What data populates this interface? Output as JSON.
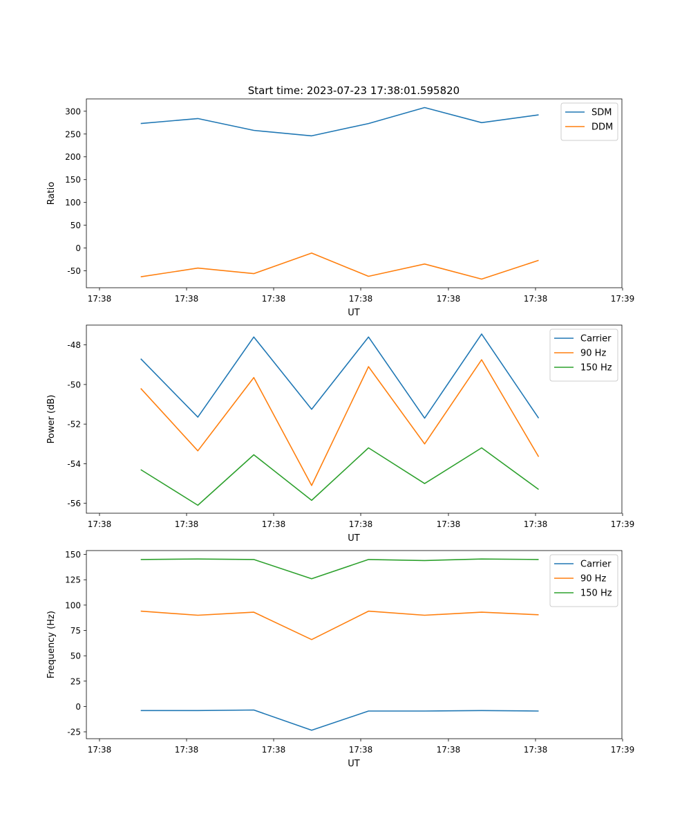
{
  "figure_title": "Start time: 2023-07-23 17:38:01.595820",
  "chart_data": [
    {
      "type": "line",
      "title": "Start time: 2023-07-23 17:38:01.595820",
      "xlabel": "UT",
      "ylabel": "Ratio",
      "x_tick_labels": [
        "17:38",
        "17:38",
        "17:38",
        "17:38",
        "17:38",
        "17:38",
        "17:39"
      ],
      "ylim": [
        -87,
        327
      ],
      "yticks": [
        -50,
        0,
        50,
        100,
        150,
        200,
        250,
        300
      ],
      "legend_position": "top-right",
      "series": [
        {
          "name": "SDM",
          "color": "#1f77b4",
          "values": [
            273,
            284,
            258,
            246,
            273,
            308,
            275,
            292
          ]
        },
        {
          "name": "DDM",
          "color": "#ff7f0e",
          "values": [
            -63,
            -44,
            -56,
            -11,
            -62,
            -35,
            -68,
            -27
          ]
        }
      ]
    },
    {
      "type": "line",
      "xlabel": "UT",
      "ylabel": "Power (dB)",
      "x_tick_labels": [
        "17:38",
        "17:38",
        "17:38",
        "17:38",
        "17:38",
        "17:38",
        "17:39"
      ],
      "ylim": [
        -56.5,
        -47.0
      ],
      "yticks": [
        -56,
        -54,
        -52,
        -50,
        -48
      ],
      "legend_position": "top-right",
      "series": [
        {
          "name": "Carrier",
          "color": "#1f77b4",
          "values": [
            -48.7,
            -51.65,
            -47.6,
            -51.25,
            -47.6,
            -51.7,
            -47.45,
            -51.7
          ]
        },
        {
          "name": "90 Hz",
          "color": "#ff7f0e",
          "values": [
            -50.2,
            -53.35,
            -49.65,
            -55.1,
            -49.1,
            -53.0,
            -48.75,
            -53.65
          ]
        },
        {
          "name": "150 Hz",
          "color": "#2ca02c",
          "values": [
            -54.3,
            -56.1,
            -53.55,
            -55.85,
            -53.2,
            -55.0,
            -53.2,
            -55.3
          ]
        }
      ]
    },
    {
      "type": "line",
      "xlabel": "UT",
      "ylabel": "Frequency (Hz)",
      "x_tick_labels": [
        "17:38",
        "17:38",
        "17:38",
        "17:38",
        "17:38",
        "17:38",
        "17:39"
      ],
      "ylim": [
        -31.8,
        153.8
      ],
      "yticks": [
        -25,
        0,
        25,
        50,
        75,
        100,
        125,
        150
      ],
      "legend_position": "top-right",
      "series": [
        {
          "name": "Carrier",
          "color": "#1f77b4",
          "values": [
            -4,
            -4,
            -3.5,
            -23.5,
            -4.5,
            -4.5,
            -4,
            -4.5
          ]
        },
        {
          "name": "90 Hz",
          "color": "#ff7f0e",
          "values": [
            94,
            90,
            93,
            66,
            94,
            90,
            93,
            90.5
          ]
        },
        {
          "name": "150 Hz",
          "color": "#2ca02c",
          "values": [
            145,
            145.5,
            145,
            126,
            145,
            144,
            145.5,
            145
          ]
        }
      ]
    }
  ]
}
